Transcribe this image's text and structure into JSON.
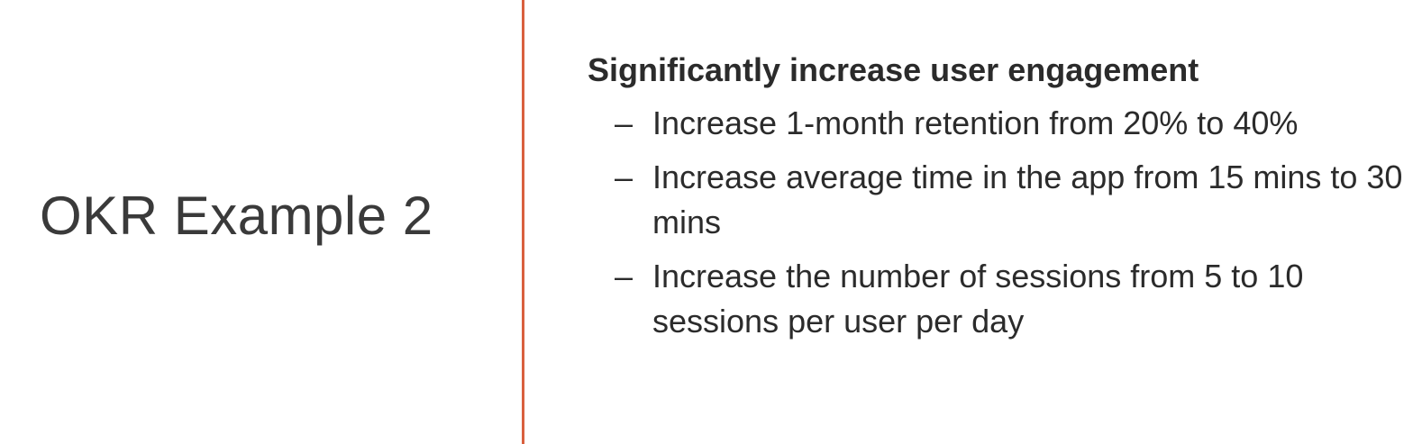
{
  "slide": {
    "title": "OKR Example 2",
    "accent_color": "#d9603f",
    "objective": "Significantly increase user engagement",
    "bullet_symbol": "–",
    "key_results": [
      "Increase 1-month retention from 20% to 40%",
      "Increase average time in the app from 15 mins to 30 mins",
      "Increase the number of sessions from 5 to 10 sessions per user per day"
    ]
  }
}
